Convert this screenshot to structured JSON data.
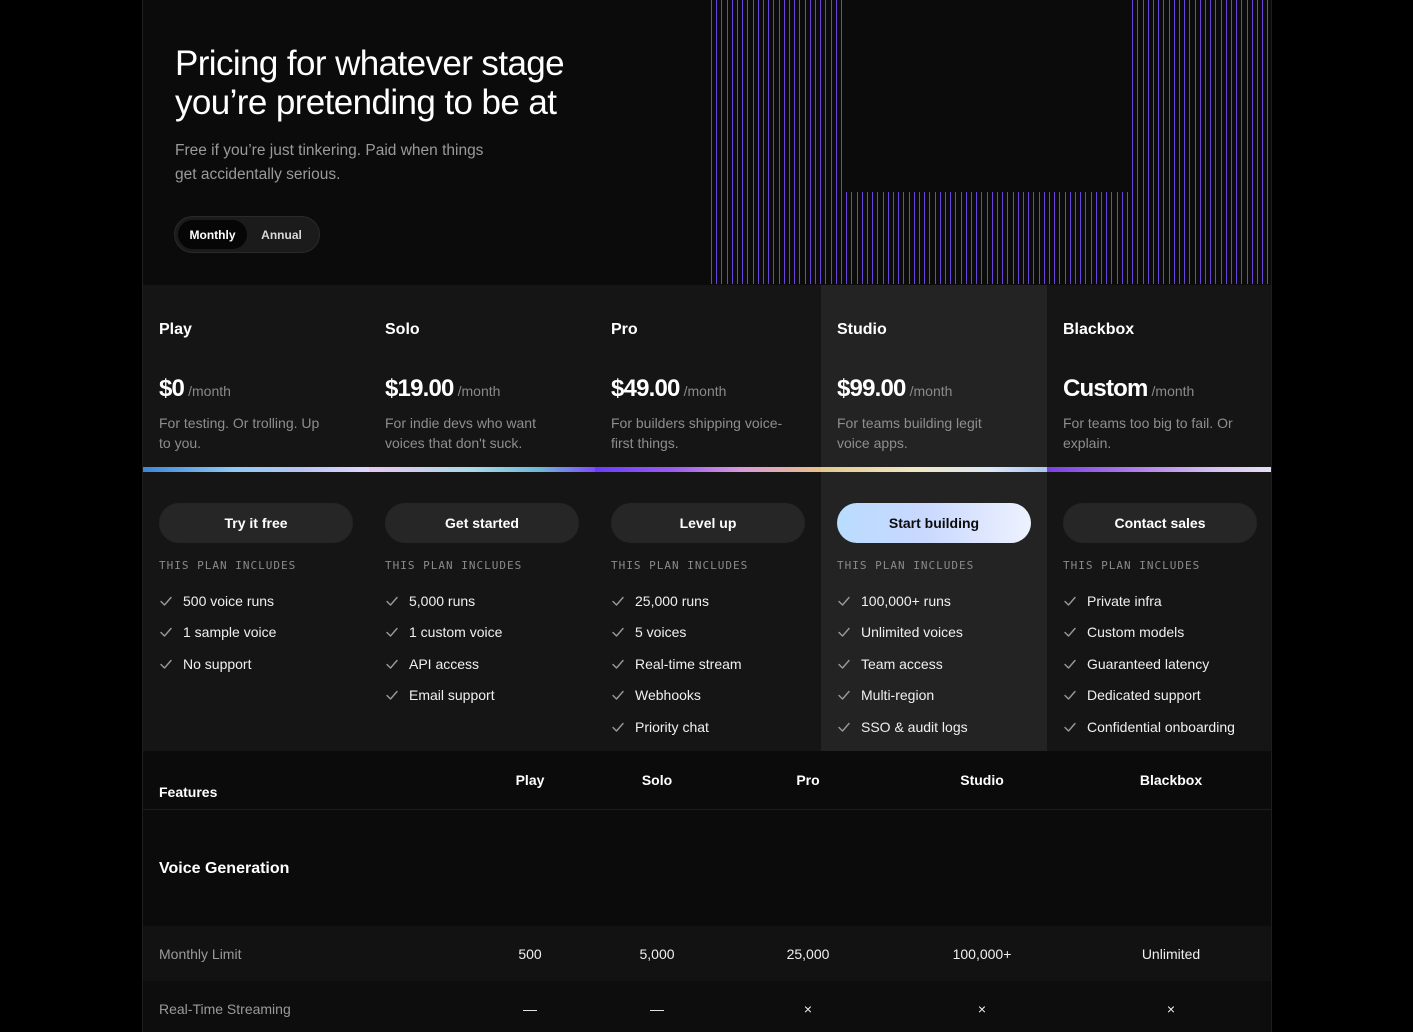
{
  "hero": {
    "title": "Pricing for whatever stage you’re pretending to be at",
    "subtitle": "Free if you’re just tinkering. Paid when things get accidentally serious.",
    "toggle": {
      "monthly": "Monthly",
      "annual": "Annual",
      "selected": "Monthly"
    }
  },
  "plans": [
    {
      "name": "Play",
      "price": "$0",
      "period": "/month",
      "description": "For testing. Or trolling. Up to you.",
      "cta": "Try it free",
      "includes_label": "THIS PLAN INCLUDES",
      "features": [
        "500 voice runs",
        "1 sample voice",
        "No support"
      ]
    },
    {
      "name": "Solo",
      "price": "$19.00",
      "period": "/month",
      "description": "For indie devs who want voices that don't suck.",
      "cta": "Get started",
      "includes_label": "THIS PLAN INCLUDES",
      "features": [
        "5,000 runs",
        "1 custom voice",
        "API access",
        "Email support"
      ]
    },
    {
      "name": "Pro",
      "price": "$49.00",
      "period": "/month",
      "description": "For builders shipping voice-first things.",
      "cta": "Level up",
      "includes_label": "THIS PLAN INCLUDES",
      "features": [
        "25,000 runs",
        "5 voices",
        "Real-time stream",
        "Webhooks",
        "Priority chat"
      ]
    },
    {
      "name": "Studio",
      "price": "$99.00",
      "period": "/month",
      "description": "For teams building legit voice apps.",
      "cta": "Start building",
      "includes_label": "THIS PLAN INCLUDES",
      "features": [
        "100,000+ runs",
        "Unlimited voices",
        "Team access",
        "Multi-region",
        "SSO & audit logs"
      ]
    },
    {
      "name": "Blackbox",
      "price": "Custom",
      "period": "/month",
      "description": "For teams too big to fail. Or explain.",
      "cta": "Contact sales",
      "includes_label": "THIS PLAN INCLUDES",
      "features": [
        "Private infra",
        "Custom models",
        "Guaranteed latency",
        "Dedicated support",
        "Confidential onboarding"
      ]
    }
  ],
  "table": {
    "features_header": "Features",
    "columns": [
      "Play",
      "Solo",
      "Pro",
      "Studio",
      "Blackbox"
    ],
    "section_title": "Voice Generation",
    "rows": [
      {
        "label": "Monthly Limit",
        "values": [
          "500",
          "5,000",
          "25,000",
          "100,000+",
          "Unlimited"
        ]
      },
      {
        "label": "Real-Time Streaming",
        "values": [
          "—",
          "—",
          "×",
          "×",
          "×"
        ]
      }
    ]
  },
  "colors": {
    "accent_purple": "#7b4dff",
    "page_bg": "#0b0b0b",
    "card_bg": "#151515",
    "featured_card_bg": "#232323"
  }
}
